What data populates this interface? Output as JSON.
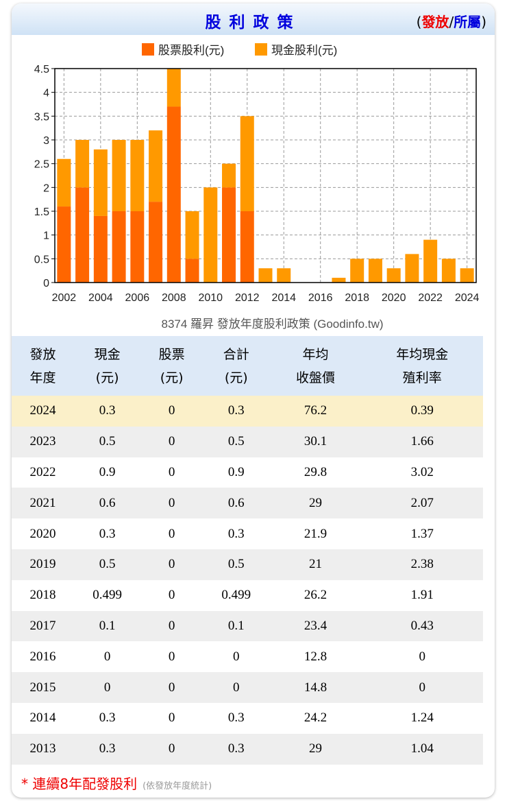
{
  "header": {
    "title": "股利政策",
    "sub_open": "(",
    "sub_red": "發放",
    "sub_sep": "/",
    "sub_blue": "所屬",
    "sub_close": ")"
  },
  "chart_data": {
    "type": "bar",
    "stacked": true,
    "categories": [
      "2002",
      "2003",
      "2004",
      "2005",
      "2006",
      "2007",
      "2008",
      "2009",
      "2010",
      "2011",
      "2012",
      "2013",
      "2014",
      "2015",
      "2016",
      "2017",
      "2018",
      "2019",
      "2020",
      "2021",
      "2022",
      "2023",
      "2024"
    ],
    "series": [
      {
        "name": "股票股利(元)",
        "color": "#ff6600",
        "values": [
          1.6,
          2.0,
          1.4,
          1.5,
          1.5,
          1.7,
          3.7,
          0.5,
          0,
          2.0,
          1.5,
          0,
          0,
          0,
          0,
          0,
          0,
          0,
          0,
          0,
          0,
          0,
          0
        ]
      },
      {
        "name": "現金股利(元)",
        "color": "#ff9900",
        "values": [
          1.0,
          1.0,
          1.4,
          1.5,
          1.5,
          1.5,
          0.9,
          1.0,
          2.0,
          0.5,
          2.0,
          0.3,
          0.3,
          0,
          0,
          0.1,
          0.5,
          0.5,
          0.3,
          0.6,
          0.9,
          0.5,
          0.3
        ]
      }
    ],
    "xticks": [
      "2002",
      "2004",
      "2006",
      "2008",
      "2010",
      "2012",
      "2014",
      "2016",
      "2018",
      "2020",
      "2022",
      "2024"
    ],
    "yticks": [
      "0",
      "0.5",
      "1",
      "1.5",
      "2",
      "2.5",
      "3",
      "3.5",
      "4",
      "4.5"
    ],
    "ylim": [
      0,
      4.5
    ],
    "grid": true,
    "legend": "top",
    "caption": "8374 羅昇 發放年度股利政策 (Goodinfo.tw)"
  },
  "table": {
    "headers": [
      [
        "發放",
        "年度"
      ],
      [
        "現金",
        "(元)"
      ],
      [
        "股票",
        "(元)"
      ],
      [
        "合計",
        "(元)"
      ],
      [
        "年均",
        "收盤價"
      ],
      [
        "年均現金",
        "殖利率"
      ]
    ],
    "rows": [
      [
        "2024",
        "0.3",
        "0",
        "0.3",
        "76.2",
        "0.39"
      ],
      [
        "2023",
        "0.5",
        "0",
        "0.5",
        "30.1",
        "1.66"
      ],
      [
        "2022",
        "0.9",
        "0",
        "0.9",
        "29.8",
        "3.02"
      ],
      [
        "2021",
        "0.6",
        "0",
        "0.6",
        "29",
        "2.07"
      ],
      [
        "2020",
        "0.3",
        "0",
        "0.3",
        "21.9",
        "1.37"
      ],
      [
        "2019",
        "0.5",
        "0",
        "0.5",
        "21",
        "2.38"
      ],
      [
        "2018",
        "0.499",
        "0",
        "0.499",
        "26.2",
        "1.91"
      ],
      [
        "2017",
        "0.1",
        "0",
        "0.1",
        "23.4",
        "0.43"
      ],
      [
        "2016",
        "0",
        "0",
        "0",
        "12.8",
        "0"
      ],
      [
        "2015",
        "0",
        "0",
        "0",
        "14.8",
        "0"
      ],
      [
        "2014",
        "0.3",
        "0",
        "0.3",
        "24.2",
        "1.24"
      ],
      [
        "2013",
        "0.3",
        "0",
        "0.3",
        "29",
        "1.04"
      ]
    ]
  },
  "footer": {
    "note": "* 連續8年配發股利",
    "hint": "(依發放年度統計)"
  }
}
